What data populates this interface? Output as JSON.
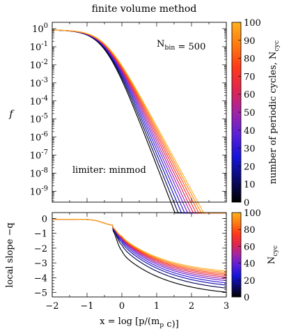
{
  "title": "finite volume method",
  "chart_data": [
    {
      "type": "line",
      "panel": "top",
      "ylabel": "f",
      "yscale": "log",
      "ylim_exp": [
        -9.6,
        0.35
      ],
      "xlim": [
        -2,
        3
      ],
      "ytick_labels": [
        "10^0",
        "10^-1",
        "10^-2",
        "10^-3",
        "10^-4",
        "10^-5",
        "10^-6",
        "10^-7",
        "10^-8",
        "10^-9"
      ],
      "ytick_exp": [
        0,
        -1,
        -2,
        -3,
        -4,
        -5,
        -6,
        -7,
        -8,
        -9
      ],
      "annotation_nbin": "N_bin = 500",
      "annotation_limiter": "limiter: minmod",
      "colorbar_label": "number of periodic cycles, N_cyc",
      "colorbar_ticks": [
        0,
        10,
        20,
        30,
        40,
        50,
        60,
        70,
        80,
        90,
        100
      ],
      "series_ncyc": [
        0,
        10,
        20,
        30,
        40,
        50,
        60,
        70,
        80,
        90,
        100
      ],
      "curve_model": {
        "x0": -0.5,
        "plateau_exp": -0.07,
        "slope_inf": [
          5.0,
          4.78,
          4.58,
          4.4,
          4.24,
          4.1,
          3.97,
          3.85,
          3.74,
          3.64,
          3.55
        ]
      }
    },
    {
      "type": "line",
      "panel": "bottom",
      "ylabel": "local slope −q",
      "ylim": [
        -5.3,
        0.4
      ],
      "xlim": [
        -2,
        3
      ],
      "ytick_labels": [
        "0",
        "−1",
        "−2",
        "−3",
        "−4",
        "−5"
      ],
      "ytick_values": [
        0,
        -1,
        -2,
        -3,
        -4,
        -5
      ],
      "xtick_labels": [
        "−2",
        "−1",
        "0",
        "1",
        "2",
        "3"
      ],
      "xtick_values": [
        -2,
        -1,
        0,
        1,
        2,
        3
      ],
      "xlabel": "x = log [p/(m_p c)]",
      "colorbar_label": "N_cyc",
      "colorbar_ticks": [
        0,
        20,
        40,
        60,
        80,
        100
      ],
      "series_ncyc": [
        0,
        10,
        20,
        30,
        40,
        50,
        60,
        70,
        80,
        90,
        100
      ],
      "slope_at_x3": [
        -4.98,
        -4.7,
        -4.5,
        -4.35,
        -4.2,
        -4.08,
        -3.96,
        -3.85,
        -3.75,
        -3.65,
        -3.55
      ],
      "slope_at_x0": [
        -2.4,
        -1.95,
        -1.75,
        -1.62,
        -1.52,
        -1.45,
        -1.4,
        -1.36,
        -1.33,
        -1.3,
        -1.28
      ]
    }
  ],
  "colormap_stops": [
    "#000000",
    "#0a0a6a",
    "#1414d8",
    "#5a1fd8",
    "#a324a6",
    "#e0254e",
    "#ff3a1a",
    "#ff7a10",
    "#ffb020"
  ]
}
